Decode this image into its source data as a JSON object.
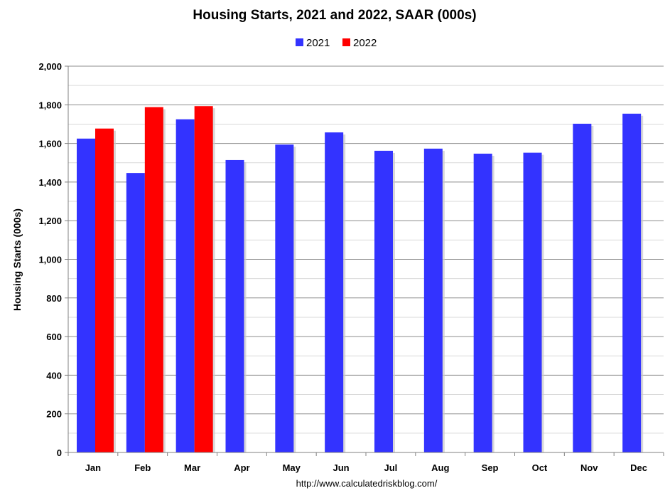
{
  "chart_data": {
    "type": "bar",
    "title": "Housing Starts,  2021 and 2022, SAAR (000s)",
    "ylabel": "Housing Starts (000s)",
    "xlabel": "",
    "source": "http://www.calculatedriskblog.com/",
    "categories": [
      "Jan",
      "Feb",
      "Mar",
      "Apr",
      "May",
      "Jun",
      "Jul",
      "Aug",
      "Sep",
      "Oct",
      "Nov",
      "Dec"
    ],
    "ylim": [
      0,
      2000
    ],
    "yticks": [
      0,
      200,
      400,
      600,
      800,
      1000,
      1200,
      1400,
      1600,
      1800,
      2000
    ],
    "ytick_labels": [
      "0",
      "200",
      "400",
      "600",
      "800",
      "1,000",
      "1,200",
      "1,400",
      "1,600",
      "1,800",
      "2,000"
    ],
    "grid": true,
    "legend_position": "top-center",
    "series": [
      {
        "name": "2021",
        "color": "#3333ff",
        "values": [
          1625,
          1447,
          1725,
          1514,
          1594,
          1657,
          1562,
          1573,
          1547,
          1552,
          1702,
          1754
        ]
      },
      {
        "name": "2022",
        "color": "#ff0000",
        "values": [
          1677,
          1788,
          1793,
          null,
          null,
          null,
          null,
          null,
          null,
          null,
          null,
          null
        ]
      }
    ]
  }
}
